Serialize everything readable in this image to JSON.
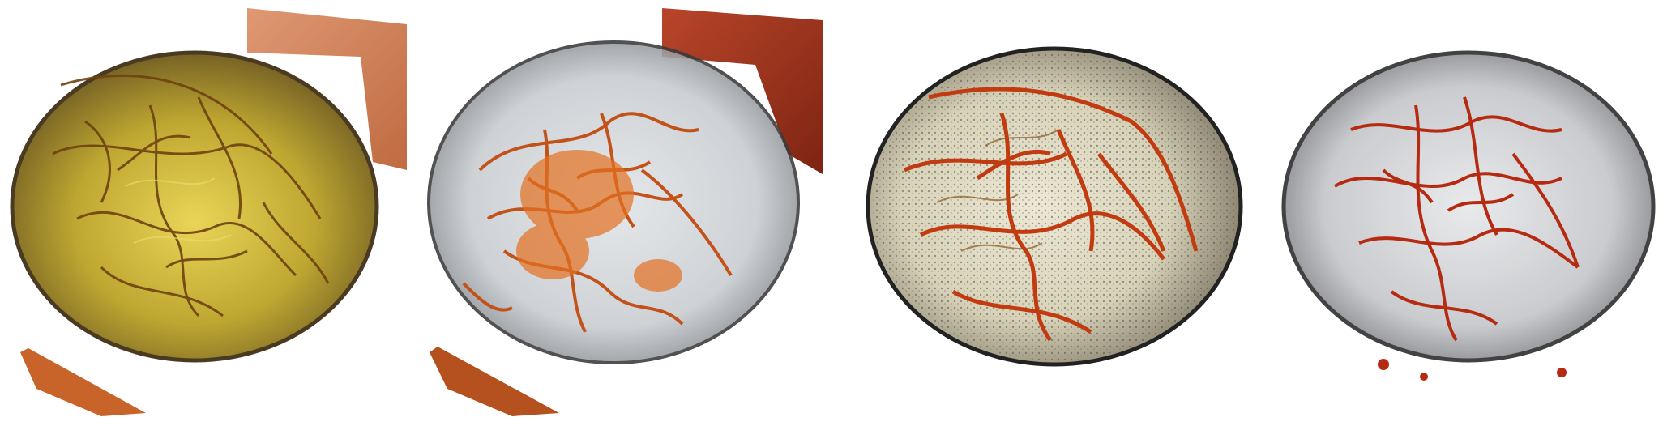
{
  "figure": {
    "panels": [
      {
        "id": "panel-1",
        "content": "yellow-translucent-skull-with-vessels",
        "colors": {
          "skull_fill": "#b9a020",
          "skull_edge": "#3b2a10",
          "vessel": "#7a4a10",
          "plane": "#c8642a"
        },
        "has_slice_planes": true
      },
      {
        "id": "panel-2",
        "content": "gray-translucent-skull-with-orange-vessels",
        "colors": {
          "skull_fill": "#c8ccd0",
          "skull_edge": "#3a3a3a",
          "vessel": "#b8400f",
          "plane": "#a8381a"
        },
        "has_slice_planes": true
      },
      {
        "id": "panel-3",
        "content": "speckled-skull-with-red-vessels",
        "colors": {
          "skull_fill": "#d8d2b8",
          "skull_edge": "#222222",
          "vessel": "#c23b10",
          "plane": ""
        },
        "has_slice_planes": false
      },
      {
        "id": "panel-4",
        "content": "gray-skull-with-dense-red-vessels",
        "colors": {
          "skull_fill": "#c4c6ca",
          "skull_edge": "#2e2e2e",
          "vessel": "#b52a10",
          "plane": ""
        },
        "has_slice_planes": false
      }
    ]
  }
}
